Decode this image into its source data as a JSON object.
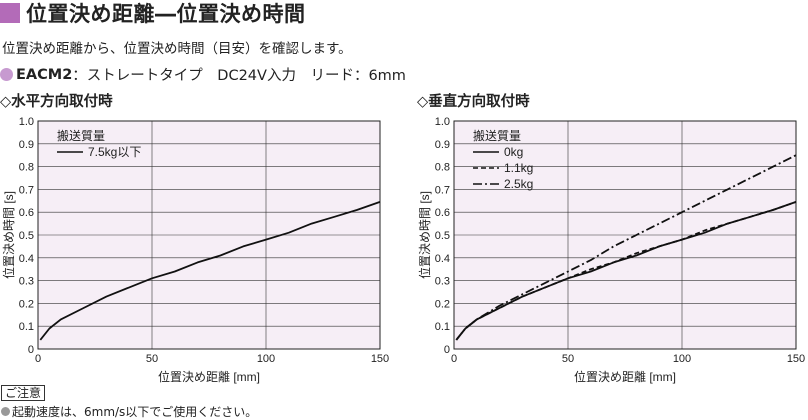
{
  "header": {
    "title": "位置決め距離―位置決め時間",
    "subtitle": "位置決め距離から、位置決め時間（目安）を確認します。",
    "model_name": "EACM2",
    "model_spec": "：ストレートタイプ　DC24V入力　リード：6mm",
    "accent_color": "#b36bb8"
  },
  "sections": [
    {
      "label": "◇水平方向取付時"
    },
    {
      "label": "◇垂直方向取付時"
    }
  ],
  "note": {
    "tag": "ご注意",
    "text": "起動速度は、6mm/s以下でご使用ください。"
  },
  "chart_data": [
    {
      "type": "line",
      "xlabel": "位置決め距離 [mm]",
      "ylabel": "位置決め時間 [s]",
      "xlim": [
        0,
        150
      ],
      "ylim": [
        0,
        1.0
      ],
      "xticks": [
        "0",
        "50",
        "100",
        "150"
      ],
      "yticks": [
        "0",
        "0.1",
        "0.2",
        "0.3",
        "0.4",
        "0.5",
        "0.6",
        "0.7",
        "0.8",
        "0.9",
        "1.0"
      ],
      "grid": true,
      "plot_bg": "#f6eef6",
      "legend_title": "搬送質量",
      "legend_position": "top-left",
      "series": [
        {
          "name": "7.5kg以下",
          "style": "solid",
          "x": [
            1,
            5,
            10,
            20,
            30,
            40,
            50,
            60,
            70,
            80,
            90,
            100,
            110,
            120,
            130,
            140,
            150
          ],
          "y": [
            0.04,
            0.09,
            0.13,
            0.18,
            0.23,
            0.27,
            0.31,
            0.34,
            0.38,
            0.41,
            0.45,
            0.48,
            0.51,
            0.55,
            0.58,
            0.61,
            0.645
          ]
        }
      ]
    },
    {
      "type": "line",
      "xlabel": "位置決め距離 [mm]",
      "ylabel": "位置決め時間 [s]",
      "xlim": [
        0,
        150
      ],
      "ylim": [
        0,
        1.0
      ],
      "xticks": [
        "0",
        "50",
        "100",
        "150"
      ],
      "yticks": [
        "0",
        "0.1",
        "0.2",
        "0.3",
        "0.4",
        "0.5",
        "0.6",
        "0.7",
        "0.8",
        "0.9",
        "1.0"
      ],
      "grid": true,
      "plot_bg": "#f6eef6",
      "legend_title": "搬送質量",
      "legend_position": "top-left",
      "series": [
        {
          "name": "0kg",
          "style": "solid",
          "x": [
            1,
            5,
            10,
            20,
            30,
            40,
            50,
            60,
            70,
            80,
            90,
            100,
            110,
            120,
            130,
            140,
            150
          ],
          "y": [
            0.04,
            0.09,
            0.13,
            0.18,
            0.23,
            0.27,
            0.31,
            0.34,
            0.38,
            0.41,
            0.45,
            0.48,
            0.51,
            0.55,
            0.58,
            0.61,
            0.645
          ]
        },
        {
          "name": "1.1kg",
          "style": "dashed",
          "x": [
            1,
            5,
            10,
            20,
            30,
            40,
            50,
            60,
            70,
            80,
            90,
            100,
            110,
            120,
            130,
            140,
            150
          ],
          "y": [
            0.04,
            0.09,
            0.13,
            0.18,
            0.23,
            0.27,
            0.31,
            0.35,
            0.38,
            0.42,
            0.45,
            0.48,
            0.52,
            0.55,
            0.58,
            0.61,
            0.645
          ]
        },
        {
          "name": "2.5kg",
          "style": "dashdot",
          "x": [
            1,
            5,
            10,
            20,
            30,
            40,
            50,
            60,
            70,
            80,
            90,
            100,
            110,
            120,
            130,
            140,
            150
          ],
          "y": [
            0.04,
            0.09,
            0.13,
            0.19,
            0.24,
            0.29,
            0.34,
            0.39,
            0.45,
            0.5,
            0.55,
            0.6,
            0.65,
            0.7,
            0.75,
            0.8,
            0.85
          ]
        }
      ]
    }
  ]
}
